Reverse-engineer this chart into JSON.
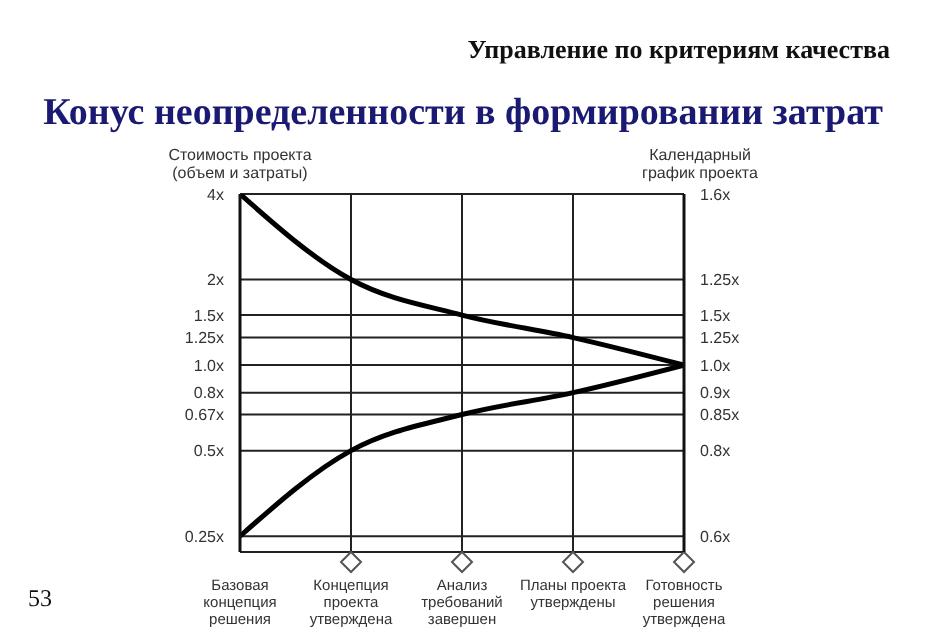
{
  "chart_data": {
    "type": "line",
    "title": "Конус неопределенности в формировании затрат",
    "annotations": [
      "Управление по критериям качества",
      "53",
      "0.6x",
      "0.8x",
      "0.85x",
      "0.9x",
      "1.0x",
      "1.25x",
      "1.5x",
      "1.25x",
      "1.6x"
    ],
    "ylabel": "Стоимость проекта (объем и затраты)",
    "y2label": "Календарный график проекта",
    "categories": [
      "Базовая концепция решения",
      "Концепция проекта утверждена",
      "Анализ требований завершен",
      "Планы проекта утверждены",
      "Готовность решения утверждена"
    ],
    "series": [
      {
        "color": "#000000",
        "values": [
          4,
          2,
          1.5,
          1.25,
          1.0
        ]
      },
      {
        "color": "#000000",
        "values": [
          0.25,
          0.5,
          0.67,
          0.8,
          1.0
        ]
      }
    ],
    "log": true,
    "ylim": [
      0.22,
      4
    ],
    "yticks": [
      {
        "value": 0.25,
        "label": "0.25x"
      },
      {
        "value": 0.5,
        "label": "0.5x"
      },
      {
        "value": 0.67,
        "label": "0.67x"
      },
      {
        "value": 0.8,
        "label": "0.8x"
      },
      {
        "value": 1,
        "label": "1.0x"
      },
      {
        "value": 1.25,
        "label": "1.25x"
      },
      {
        "value": 1.5,
        "label": "1.5x"
      },
      {
        "value": 2,
        "label": "2x"
      },
      {
        "value": 4,
        "label": "4x"
      }
    ],
    "grid": true,
    "marker": "none",
    "line_style": "solid",
    "legend": false
  }
}
